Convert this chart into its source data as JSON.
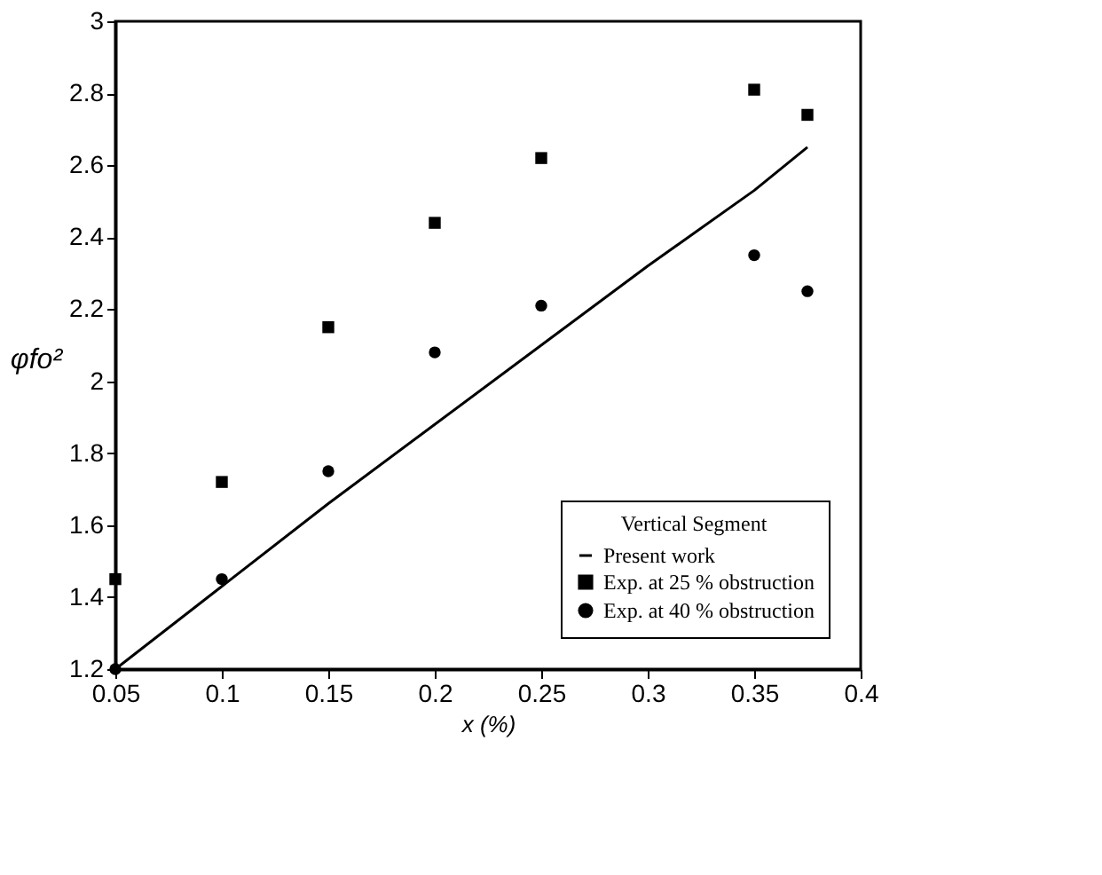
{
  "chart_data": {
    "type": "scatter",
    "xlabel": "x (%)",
    "ylabel": "φfo²",
    "legend_title": "Vertical Segment",
    "xlim": [
      0.05,
      0.4
    ],
    "xticks": [
      0.05,
      {
        "value": 0.1,
        "label": "0.1"
      },
      0.15,
      {
        "value": 0.2,
        "label": "0.2"
      },
      0.25,
      {
        "value": 0.3,
        "label": "0.3"
      },
      0.35,
      {
        "value": 0.4,
        "label": "0.4"
      }
    ],
    "ylim": [
      1.2,
      3
    ],
    "yticks": [
      1.2,
      1.4,
      1.6,
      1.8,
      {
        "value": 2,
        "label": "2"
      },
      2.2,
      2.4,
      2.6,
      2.8,
      {
        "value": 3,
        "label": "3"
      }
    ],
    "grid": false,
    "legend": "bottom right",
    "series": [
      {
        "name": "Present work",
        "type": "line",
        "color": "#000000",
        "marker": "none",
        "line_style": "solid",
        "x": [
          0.05,
          0.1,
          0.15,
          0.2,
          0.25,
          0.3,
          0.35,
          0.375
        ],
        "values": [
          1.2,
          1.43,
          1.66,
          1.88,
          2.1,
          2.32,
          2.53,
          2.65
        ]
      },
      {
        "name": "Exp. at 25 % obstruction",
        "color": "#000000",
        "marker": "square",
        "x": [
          0.05,
          0.1,
          0.15,
          0.2,
          0.25,
          0.35,
          0.375
        ],
        "values": [
          1.45,
          1.72,
          2.15,
          2.44,
          2.62,
          2.81,
          2.74
        ]
      },
      {
        "name": "Exp. at 40 % obstruction",
        "color": "#000000",
        "marker": "circle",
        "x": [
          0.05,
          0.1,
          0.15,
          0.2,
          0.25,
          0.35,
          0.375
        ],
        "values": [
          1.2,
          1.45,
          1.75,
          2.08,
          2.21,
          2.35,
          2.25
        ]
      }
    ]
  }
}
